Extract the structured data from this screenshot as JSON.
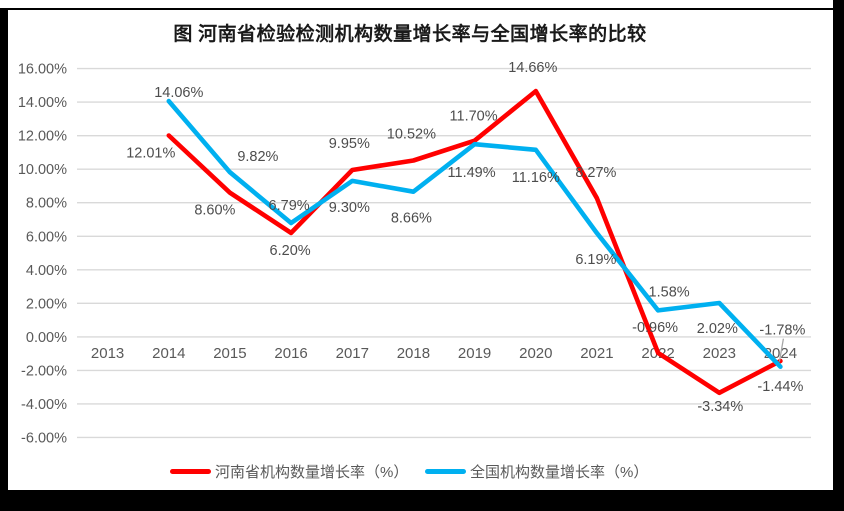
{
  "chart_data": {
    "type": "line",
    "title": "图  河南省检验检测机构数量增长率与全国增长率的比较",
    "categories": [
      "2013",
      "2014",
      "2015",
      "2016",
      "2017",
      "2018",
      "2019",
      "2020",
      "2021",
      "2022",
      "2023",
      "2024"
    ],
    "series": [
      {
        "name": "河南省机构数量增长率（%）",
        "color": "#FF0000",
        "values": [
          null,
          12.01,
          8.6,
          6.2,
          9.95,
          10.52,
          11.7,
          14.66,
          8.27,
          -0.96,
          -3.34,
          -1.44
        ],
        "labels": [
          null,
          "12.01%",
          "8.60%",
          "6.20%",
          "9.95%",
          "10.52%",
          "11.70%",
          "14.66%",
          "8.27%",
          "-0.96%",
          "-3.34%",
          "-1.44%"
        ]
      },
      {
        "name": "全国机构数量增长率（%）",
        "color": "#00B0F0",
        "values": [
          null,
          14.06,
          9.82,
          6.79,
          9.3,
          8.66,
          11.49,
          11.16,
          6.19,
          1.58,
          2.02,
          -1.78
        ],
        "labels": [
          null,
          "14.06%",
          "9.82%",
          "6.79%",
          "9.30%",
          "8.66%",
          "11.49%",
          "11.16%",
          "6.19%",
          "1.58%",
          "2.02%",
          "-1.78%"
        ]
      }
    ],
    "y_axis": {
      "min": -6,
      "max": 16,
      "step": 2,
      "ticks": [
        "16.00%",
        "14.00%",
        "12.00%",
        "10.00%",
        "8.00%",
        "6.00%",
        "4.00%",
        "2.00%",
        "0.00%",
        "-2.00%",
        "-4.00%",
        "-6.00%"
      ]
    },
    "grid": true,
    "legend_position": "bottom",
    "gridline_color": "#D9D9D9",
    "axis_text_color": "#595959",
    "data_label_color": "#4d4d4d",
    "leader_line_color": "#A6A6A6"
  }
}
